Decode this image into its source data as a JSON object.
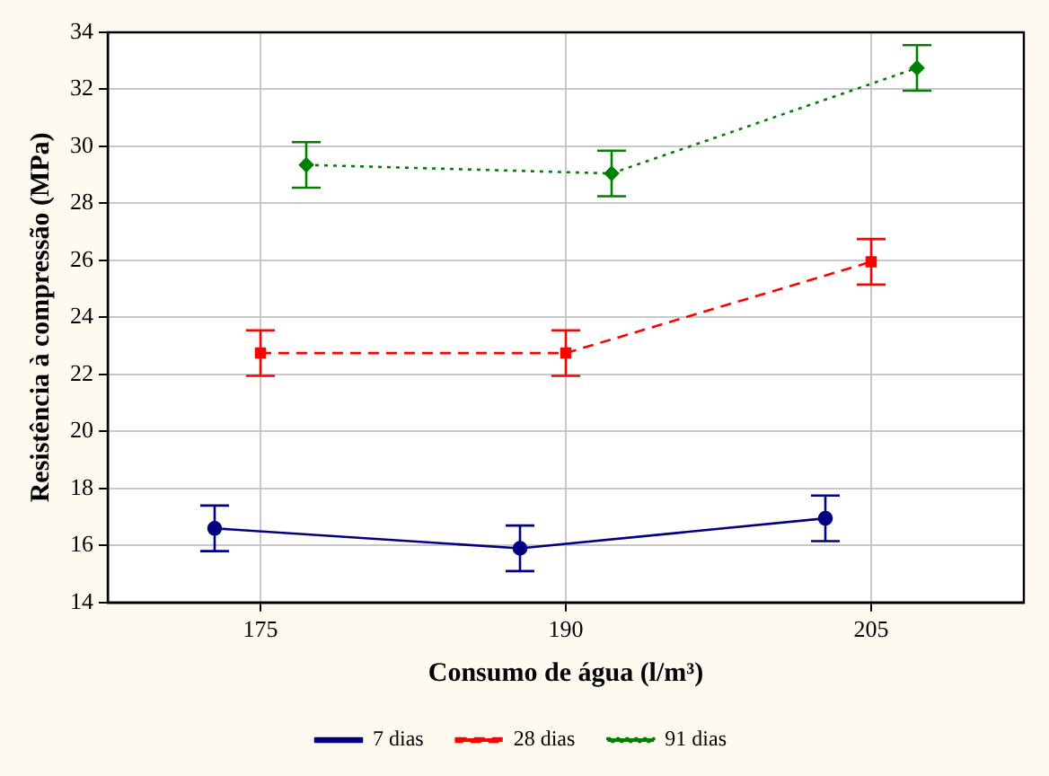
{
  "chart_data": {
    "type": "line",
    "xlabel": "Consumo de água (l/m³)",
    "ylabel": "Resistência à compressão (MPa)",
    "xlim": [
      167.5,
      212.5
    ],
    "xticks": [
      175,
      190,
      205
    ],
    "ylim": [
      14,
      34
    ],
    "yticks": [
      14,
      16,
      18,
      20,
      22,
      24,
      26,
      28,
      30,
      32,
      34
    ],
    "grid": true,
    "legend": "bottom",
    "series": [
      {
        "name": "7 dias",
        "color": "#000080",
        "x": [
          172.75,
          187.75,
          202.75
        ],
        "values": [
          16.6,
          15.9,
          16.95
        ],
        "errors": [
          0.8,
          0.8,
          0.8
        ],
        "marker": "circle",
        "line_style": "solid"
      },
      {
        "name": "28 dias",
        "color": "#ff0000",
        "x": [
          175,
          190,
          205
        ],
        "values": [
          22.75,
          22.75,
          25.95
        ],
        "errors": [
          0.8,
          0.8,
          0.8
        ],
        "marker": "square",
        "line_style": "dashed"
      },
      {
        "name": "91 dias",
        "color": "#008000",
        "x": [
          177.25,
          192.25,
          207.25
        ],
        "values": [
          29.35,
          29.05,
          32.75
        ],
        "errors": [
          0.8,
          0.8,
          0.8
        ],
        "marker": "diamond",
        "line_style": "dotted"
      }
    ]
  }
}
